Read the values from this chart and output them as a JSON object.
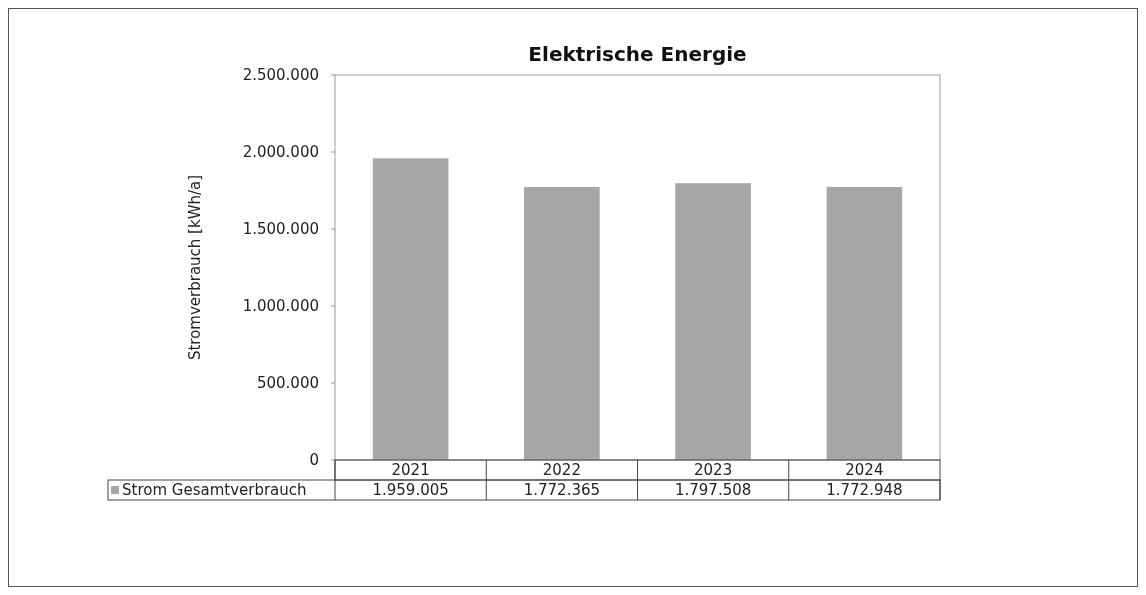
{
  "chart_data": {
    "type": "bar",
    "title": "Elektrische Energie",
    "ylabel": "Stromverbrauch [kWh/a]",
    "categories": [
      "2021",
      "2022",
      "2023",
      "2024"
    ],
    "series": [
      {
        "name": "Strom Gesamtverbrauch",
        "color": "#a6a6a6",
        "values": [
          1959005,
          1772365,
          1797508,
          1772948
        ],
        "value_labels": [
          "1.959.005",
          "1.772.365",
          "1.797.508",
          "1.772.948"
        ]
      }
    ],
    "ylim": [
      0,
      2500000
    ],
    "yticks": [
      {
        "value": 0,
        "label": "0"
      },
      {
        "value": 500000,
        "label": "500.000"
      },
      {
        "value": 1000000,
        "label": "1.000.000"
      },
      {
        "value": 1500000,
        "label": "1.500.000"
      },
      {
        "value": 2000000,
        "label": "2.000.000"
      },
      {
        "value": 2500000,
        "label": "2.500.000"
      }
    ],
    "legend": "bottom"
  }
}
